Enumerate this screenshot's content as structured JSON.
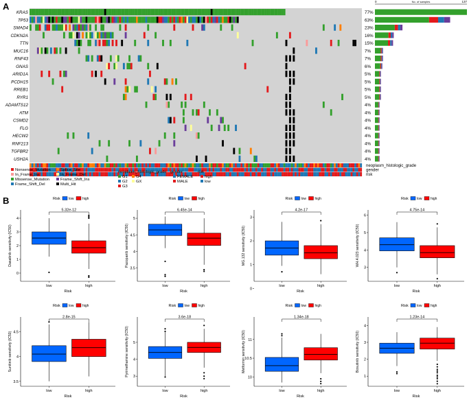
{
  "panel_labels": {
    "a": "A",
    "b": "B"
  },
  "colors": {
    "grid_bg": "#d3d3d3",
    "missense": "#33a02c",
    "nonsense": "#e31a1c",
    "frame_shift_del": "#1f78b4",
    "frame_shift_ins": "#6a3d9a",
    "in_frame_del": "#ffff99",
    "in_frame_ins": "#fb9a99",
    "splice_site": "#ff7f00",
    "multi_hit": "#000000",
    "low": "#0066ff",
    "high": "#ff0000"
  },
  "oncoplot": {
    "top_axis_min": "0",
    "top_axis_max": "137",
    "top_axis_label": "No. of samples",
    "genes": [
      "KRAS",
      "TP53",
      "SMAD4",
      "CDKN2A",
      "TTN",
      "MUC16",
      "RNF43",
      "GNAS",
      "ARID1A",
      "PCDH15",
      "RREB1",
      "RYR1",
      "ADAMTS12",
      "ATM",
      "CSMD2",
      "FLG",
      "HECW2",
      "RNF213",
      "TGFBR2",
      "USH2A"
    ],
    "percents": [
      "77%",
      "63%",
      "23%",
      "16%",
      "15%",
      "7%",
      "7%",
      "6%",
      "5%",
      "5%",
      "5%",
      "5%",
      "4%",
      "4%",
      "4%",
      "4%",
      "4%",
      "4%",
      "4%",
      "4%"
    ],
    "counts": [
      137,
      112,
      41,
      28,
      27,
      12,
      12,
      11,
      9,
      9,
      9,
      9,
      7,
      7,
      7,
      7,
      7,
      7,
      7,
      7
    ],
    "annotation_tracks": [
      "neoplasm_histologic_grade",
      "gender",
      "risk"
    ],
    "legend_mutations": [
      "Nonsense_Mutation",
      "Splice_Site",
      "In_Frame_Ins",
      "In_Frame_Del",
      "Missense_Mutation",
      "Frame_Shift_Ins",
      "Frame_Shift_Del",
      "Multi_Hit"
    ],
    "legend_grade_title": "neoplasm_histologic_grade",
    "legend_grade_items": [
      "G1",
      "G4",
      "G2",
      "GX",
      "G3"
    ],
    "legend_grade_colors": [
      "#33a02c",
      "#ff7f00",
      "#1f78b4",
      "#ffff99",
      "#e31a1c"
    ],
    "legend_gender_title": "gender",
    "legend_gender_items": [
      "FEMALE",
      "MALE"
    ],
    "legend_gender_colors": [
      "#1f78b4",
      "#e31a1c"
    ],
    "legend_risk_title": "risk",
    "legend_risk_items": [
      "high",
      "low"
    ],
    "legend_risk_colors": [
      "#e31a1c",
      "#1f78b4"
    ]
  },
  "chart_data": [
    {
      "type": "box",
      "ylabel": "Dasatinib sensitivity (IC50)",
      "xlabel": "Risk",
      "legend_title": "Risk",
      "categories": [
        "low",
        "high"
      ],
      "pvalue": "5.32e-12",
      "yticks": [
        0,
        1,
        2,
        3,
        4
      ],
      "ylim": [
        -0.6,
        4.6
      ],
      "boxes": [
        {
          "q1": 2.1,
          "median": 2.55,
          "q3": 3.0,
          "min": 1.2,
          "max": 4.0,
          "outliers": [
            0.05
          ]
        },
        {
          "q1": 1.45,
          "median": 1.85,
          "q3": 2.35,
          "min": 0.3,
          "max": 3.6,
          "outliers": [
            4.0,
            4.1,
            4.2,
            -0.2,
            -0.3
          ]
        }
      ]
    },
    {
      "type": "box",
      "ylabel": "Pazopanib sensitivity (IC50)",
      "xlabel": "Risk",
      "legend_title": "Risk",
      "categories": [
        "low",
        "high"
      ],
      "pvalue": "6.45e-14",
      "yticks": [
        3.5,
        4.0,
        4.5,
        5.0
      ],
      "ylim": [
        3.1,
        5.25
      ],
      "boxes": [
        {
          "q1": 4.48,
          "median": 4.65,
          "q3": 4.82,
          "min": 4.1,
          "max": 5.05,
          "outliers": [
            3.7,
            3.3,
            3.25
          ]
        },
        {
          "q1": 4.18,
          "median": 4.4,
          "q3": 4.55,
          "min": 3.6,
          "max": 5.0,
          "outliers": [
            3.45,
            3.4
          ]
        }
      ]
    },
    {
      "type": "box",
      "ylabel": "MG.132 sensitivity (IC50)",
      "xlabel": "Risk",
      "legend_title": "Risk",
      "categories": [
        "low",
        "high"
      ],
      "pvalue": "4.2e-17",
      "yticks": [
        0,
        1,
        2,
        3
      ],
      "ylim": [
        0.3,
        3.3
      ],
      "boxes": [
        {
          "q1": 1.4,
          "median": 1.7,
          "q3": 2.0,
          "min": 0.95,
          "max": 2.8,
          "outliers": [
            0.7
          ]
        },
        {
          "q1": 1.25,
          "median": 1.5,
          "q3": 1.8,
          "min": 0.6,
          "max": 2.7,
          "outliers": [
            2.85
          ]
        }
      ]
    },
    {
      "type": "box",
      "ylabel": "WH.4.023 sensitivity (IC50)",
      "xlabel": "Risk",
      "legend_title": "Risk",
      "categories": [
        "low",
        "high"
      ],
      "pvalue": "4.75e-14",
      "yticks": [
        3,
        4,
        5,
        6
      ],
      "ylim": [
        2.2,
        6.3
      ],
      "boxes": [
        {
          "q1": 3.95,
          "median": 4.3,
          "q3": 4.7,
          "min": 3.0,
          "max": 5.6,
          "outliers": [
            2.7
          ]
        },
        {
          "q1": 3.55,
          "median": 3.85,
          "q3": 4.25,
          "min": 2.6,
          "max": 5.3,
          "outliers": [
            5.5,
            2.35
          ]
        }
      ]
    },
    {
      "type": "box",
      "ylabel": "Sunitinib sensitivity (IC50)",
      "xlabel": "Risk",
      "legend_title": "Risk",
      "categories": [
        "low",
        "high"
      ],
      "pvalue": "2.8e-15",
      "yticks": [
        3.5,
        4.0,
        4.5
      ],
      "ylim": [
        3.4,
        4.8
      ],
      "boxes": [
        {
          "q1": 3.9,
          "median": 4.05,
          "q3": 4.22,
          "min": 3.5,
          "max": 4.65,
          "outliers": [
            4.7
          ]
        },
        {
          "q1": 4.0,
          "median": 4.18,
          "q3": 4.35,
          "min": 3.6,
          "max": 4.7,
          "outliers": []
        }
      ]
    },
    {
      "type": "box",
      "ylabel": "Pyrimethamine sensitivity (IC50)",
      "xlabel": "Risk",
      "legend_title": "Risk",
      "categories": [
        "low",
        "high"
      ],
      "pvalue": "3.6e-18",
      "yticks": [
        3,
        4,
        5
      ],
      "ylim": [
        2.4,
        6.5
      ],
      "boxes": [
        {
          "q1": 4.05,
          "median": 4.4,
          "q3": 4.75,
          "min": 3.0,
          "max": 5.6,
          "outliers": [
            5.8,
            5.65,
            2.95
          ]
        },
        {
          "q1": 4.4,
          "median": 4.7,
          "q3": 5.0,
          "min": 3.5,
          "max": 5.8,
          "outliers": [
            3.2,
            3.0,
            2.85,
            6.0
          ]
        }
      ]
    },
    {
      "type": "box",
      "ylabel": "Metformin sensitivity (IC50)",
      "xlabel": "Risk",
      "legend_title": "Risk",
      "categories": [
        "low",
        "high"
      ],
      "pvalue": "1.34e-18",
      "yticks": [
        10.0,
        10.5,
        11.0
      ],
      "ylim": [
        9.75,
        11.6
      ],
      "boxes": [
        {
          "q1": 10.15,
          "median": 10.3,
          "q3": 10.52,
          "min": 9.85,
          "max": 11.05,
          "outliers": [
            11.15,
            11.1
          ]
        },
        {
          "q1": 10.45,
          "median": 10.6,
          "q3": 10.78,
          "min": 10.1,
          "max": 11.15,
          "outliers": [
            9.95,
            9.88,
            9.82
          ]
        }
      ]
    },
    {
      "type": "box",
      "ylabel": "Bosutinib sensitivity (IC50)",
      "xlabel": "Risk",
      "legend_title": "Risk",
      "categories": [
        "low",
        "high"
      ],
      "pvalue": "1.23e-14",
      "yticks": [
        1,
        2,
        3,
        4
      ],
      "ylim": [
        0.4,
        4.5
      ],
      "boxes": [
        {
          "q1": 2.35,
          "median": 2.65,
          "q3": 2.95,
          "min": 1.6,
          "max": 3.6,
          "outliers": [
            1.25,
            1.15
          ]
        },
        {
          "q1": 2.6,
          "median": 2.95,
          "q3": 3.25,
          "min": 1.9,
          "max": 3.9,
          "outliers": [
            1.7,
            1.55,
            1.4,
            1.3,
            1.2,
            1.05,
            0.95,
            0.85,
            0.7,
            0.55
          ]
        }
      ]
    }
  ]
}
